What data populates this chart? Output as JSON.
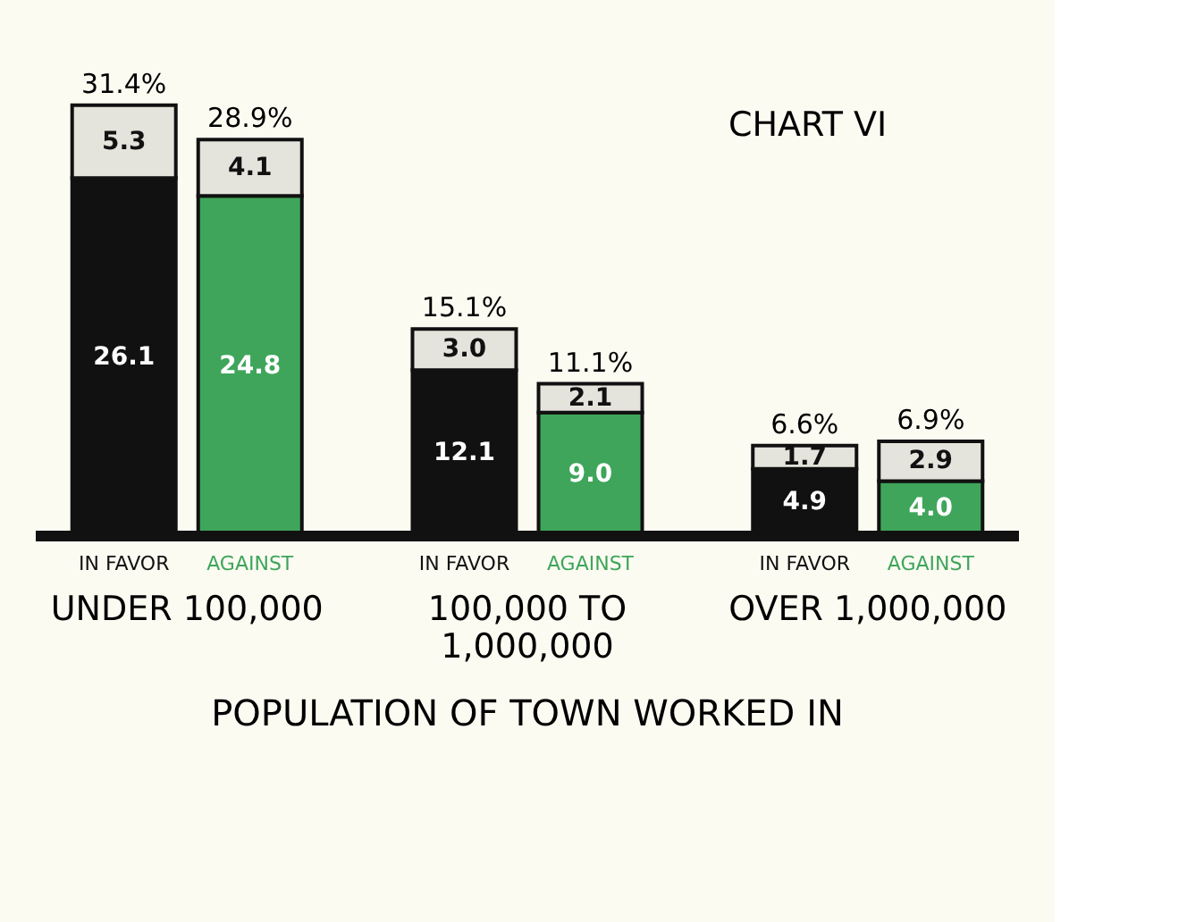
{
  "chart_data": {
    "type": "bar",
    "stacked": true,
    "title": "CHART VI",
    "xlabel": "POPULATION OF TOWN WORKED IN",
    "categories": [
      "IN FAVOR",
      "AGAINST",
      "IN FAVOR",
      "AGAINST",
      "IN FAVOR",
      "AGAINST"
    ],
    "series": [
      {
        "values": [
          26.1,
          24.8,
          12.1,
          9.0,
          4.9,
          4.0
        ],
        "value_labels": [
          "26.1",
          "24.8",
          "12.1",
          "9.0",
          "4.9",
          "4.0"
        ],
        "colors": [
          "#111111",
          "#3fa55a",
          "#111111",
          "#3fa55a",
          "#111111",
          "#3fa55a"
        ]
      },
      {
        "values": [
          5.3,
          4.1,
          3.0,
          2.1,
          1.7,
          2.9
        ],
        "value_labels": [
          "5.3",
          "4.1",
          "3.0",
          "2.1",
          "1.7",
          "2.9"
        ],
        "color": "#e4e4dc"
      }
    ],
    "totals": [
      "31.4%",
      "28.9%",
      "15.1%",
      "11.1%",
      "6.6%",
      "6.9%"
    ],
    "annotations": [
      "UNDER 100,000",
      "100,000 TO\n1,000,000",
      "OVER 1,000,000"
    ]
  }
}
